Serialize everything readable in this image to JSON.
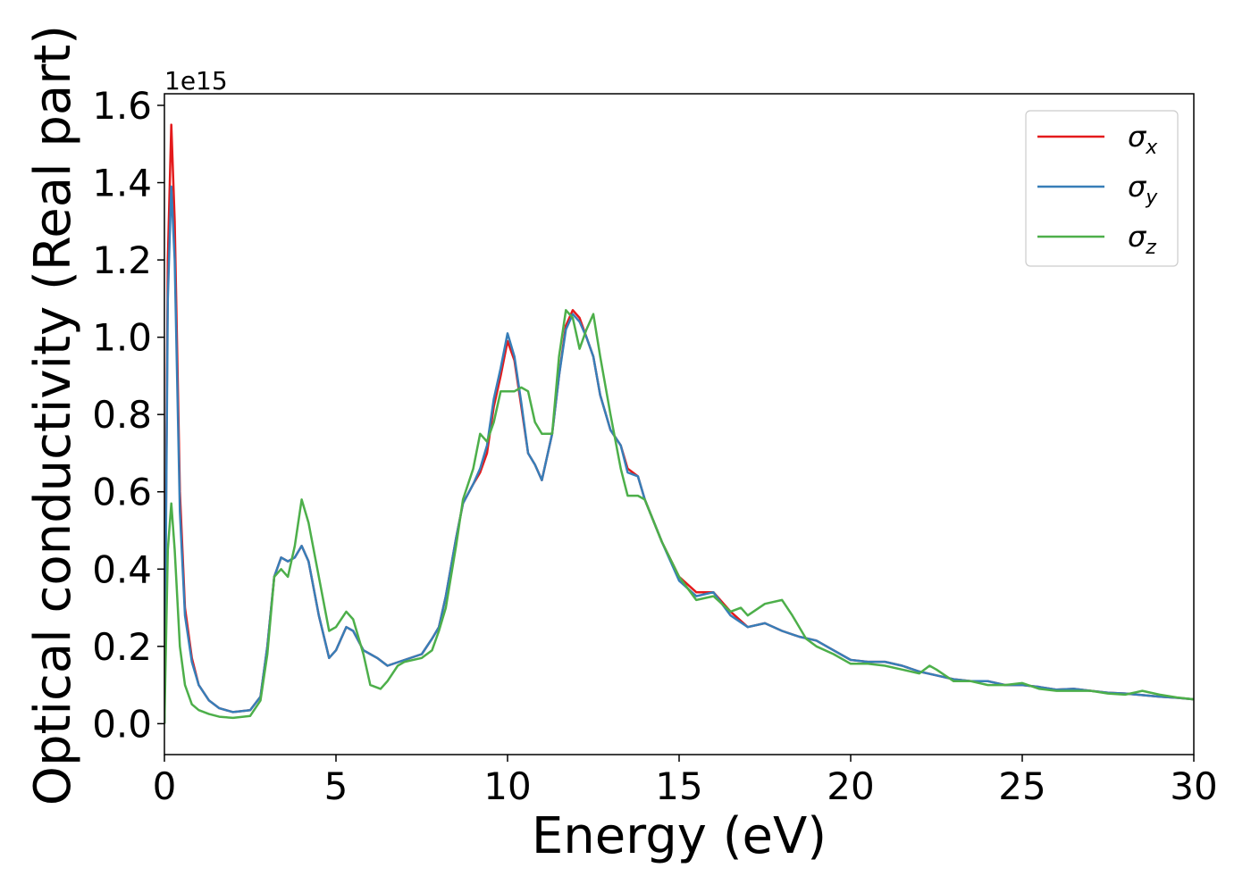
{
  "chart_data": {
    "type": "line",
    "xlabel": "Energy (eV)",
    "ylabel": "Optical conductivity (Real part)",
    "y_offset_label": "1e15",
    "xlim": [
      0,
      30
    ],
    "ylim": [
      -0.08,
      1.63
    ],
    "x_ticks": [
      0,
      5,
      10,
      15,
      20,
      25,
      30
    ],
    "y_ticks": [
      0.0,
      0.2,
      0.4,
      0.6,
      0.8,
      1.0,
      1.2,
      1.4,
      1.6
    ],
    "x_tick_labels": [
      "0",
      "5",
      "10",
      "15",
      "20",
      "25",
      "30"
    ],
    "y_tick_labels": [
      "0.0",
      "0.2",
      "0.4",
      "0.6",
      "0.8",
      "1.0",
      "1.2",
      "1.4",
      "1.6"
    ],
    "grid": false,
    "legend_position": "top-right",
    "series": [
      {
        "name": "σx",
        "symbol": "σ",
        "subscript": "x",
        "color": "#e41a1c",
        "points": [
          [
            0,
            0.0
          ],
          [
            0.1,
            1.2
          ],
          [
            0.2,
            1.55
          ],
          [
            0.3,
            1.3
          ],
          [
            0.45,
            0.6
          ],
          [
            0.6,
            0.3
          ],
          [
            0.8,
            0.17
          ],
          [
            1.0,
            0.1
          ],
          [
            1.3,
            0.06
          ],
          [
            1.6,
            0.04
          ],
          [
            2.0,
            0.03
          ],
          [
            2.5,
            0.035
          ],
          [
            2.8,
            0.07
          ],
          [
            3.0,
            0.2
          ],
          [
            3.2,
            0.38
          ],
          [
            3.4,
            0.43
          ],
          [
            3.6,
            0.42
          ],
          [
            3.8,
            0.43
          ],
          [
            4.0,
            0.46
          ],
          [
            4.2,
            0.42
          ],
          [
            4.5,
            0.28
          ],
          [
            4.8,
            0.17
          ],
          [
            5.0,
            0.19
          ],
          [
            5.3,
            0.25
          ],
          [
            5.5,
            0.24
          ],
          [
            5.8,
            0.19
          ],
          [
            6.0,
            0.18
          ],
          [
            6.2,
            0.17
          ],
          [
            6.5,
            0.15
          ],
          [
            7.0,
            0.165
          ],
          [
            7.5,
            0.18
          ],
          [
            7.8,
            0.22
          ],
          [
            8.0,
            0.25
          ],
          [
            8.2,
            0.33
          ],
          [
            8.5,
            0.48
          ],
          [
            8.7,
            0.57
          ],
          [
            9.0,
            0.62
          ],
          [
            9.2,
            0.65
          ],
          [
            9.4,
            0.7
          ],
          [
            9.6,
            0.82
          ],
          [
            9.8,
            0.9
          ],
          [
            10.0,
            0.99
          ],
          [
            10.2,
            0.94
          ],
          [
            10.4,
            0.82
          ],
          [
            10.6,
            0.7
          ],
          [
            10.8,
            0.67
          ],
          [
            11.0,
            0.63
          ],
          [
            11.3,
            0.75
          ],
          [
            11.5,
            0.9
          ],
          [
            11.7,
            1.03
          ],
          [
            11.9,
            1.07
          ],
          [
            12.1,
            1.05
          ],
          [
            12.3,
            1.0
          ],
          [
            12.5,
            0.95
          ],
          [
            12.7,
            0.85
          ],
          [
            13.0,
            0.76
          ],
          [
            13.3,
            0.72
          ],
          [
            13.5,
            0.66
          ],
          [
            13.8,
            0.64
          ],
          [
            14.0,
            0.58
          ],
          [
            14.5,
            0.47
          ],
          [
            15.0,
            0.38
          ],
          [
            15.5,
            0.34
          ],
          [
            16.0,
            0.34
          ],
          [
            16.5,
            0.29
          ],
          [
            17.0,
            0.25
          ],
          [
            17.5,
            0.26
          ],
          [
            18.0,
            0.24
          ],
          [
            18.5,
            0.225
          ],
          [
            19.0,
            0.215
          ],
          [
            19.5,
            0.19
          ],
          [
            20.0,
            0.165
          ],
          [
            20.5,
            0.16
          ],
          [
            21.0,
            0.16
          ],
          [
            21.5,
            0.15
          ],
          [
            22.0,
            0.135
          ],
          [
            22.5,
            0.125
          ],
          [
            23.0,
            0.115
          ],
          [
            23.5,
            0.11
          ],
          [
            24.0,
            0.11
          ],
          [
            24.5,
            0.1
          ],
          [
            25.0,
            0.1
          ],
          [
            25.5,
            0.095
          ],
          [
            26.0,
            0.088
          ],
          [
            26.5,
            0.09
          ],
          [
            27.0,
            0.085
          ],
          [
            27.5,
            0.08
          ],
          [
            28.0,
            0.078
          ],
          [
            28.5,
            0.074
          ],
          [
            29.0,
            0.07
          ],
          [
            29.5,
            0.067
          ],
          [
            30.0,
            0.063
          ]
        ]
      },
      {
        "name": "σy",
        "symbol": "σ",
        "subscript": "y",
        "color": "#377eb8",
        "points": [
          [
            0,
            0.0
          ],
          [
            0.1,
            1.1
          ],
          [
            0.2,
            1.39
          ],
          [
            0.3,
            1.2
          ],
          [
            0.45,
            0.55
          ],
          [
            0.6,
            0.28
          ],
          [
            0.8,
            0.16
          ],
          [
            1.0,
            0.1
          ],
          [
            1.3,
            0.06
          ],
          [
            1.6,
            0.04
          ],
          [
            2.0,
            0.03
          ],
          [
            2.5,
            0.035
          ],
          [
            2.8,
            0.07
          ],
          [
            3.0,
            0.2
          ],
          [
            3.2,
            0.38
          ],
          [
            3.4,
            0.43
          ],
          [
            3.6,
            0.42
          ],
          [
            3.8,
            0.43
          ],
          [
            4.0,
            0.46
          ],
          [
            4.2,
            0.42
          ],
          [
            4.5,
            0.28
          ],
          [
            4.8,
            0.17
          ],
          [
            5.0,
            0.19
          ],
          [
            5.3,
            0.25
          ],
          [
            5.5,
            0.24
          ],
          [
            5.8,
            0.19
          ],
          [
            6.0,
            0.18
          ],
          [
            6.2,
            0.17
          ],
          [
            6.5,
            0.15
          ],
          [
            7.0,
            0.165
          ],
          [
            7.5,
            0.18
          ],
          [
            7.8,
            0.22
          ],
          [
            8.0,
            0.25
          ],
          [
            8.2,
            0.33
          ],
          [
            8.5,
            0.48
          ],
          [
            8.7,
            0.57
          ],
          [
            9.0,
            0.62
          ],
          [
            9.2,
            0.66
          ],
          [
            9.4,
            0.72
          ],
          [
            9.6,
            0.84
          ],
          [
            9.8,
            0.92
          ],
          [
            10.0,
            1.01
          ],
          [
            10.2,
            0.95
          ],
          [
            10.4,
            0.83
          ],
          [
            10.6,
            0.7
          ],
          [
            10.8,
            0.67
          ],
          [
            11.0,
            0.63
          ],
          [
            11.3,
            0.75
          ],
          [
            11.5,
            0.9
          ],
          [
            11.7,
            1.02
          ],
          [
            11.9,
            1.06
          ],
          [
            12.1,
            1.04
          ],
          [
            12.3,
            1.0
          ],
          [
            12.5,
            0.95
          ],
          [
            12.7,
            0.85
          ],
          [
            13.0,
            0.76
          ],
          [
            13.3,
            0.72
          ],
          [
            13.5,
            0.65
          ],
          [
            13.8,
            0.64
          ],
          [
            14.0,
            0.58
          ],
          [
            14.5,
            0.47
          ],
          [
            15.0,
            0.37
          ],
          [
            15.5,
            0.33
          ],
          [
            16.0,
            0.34
          ],
          [
            16.5,
            0.28
          ],
          [
            17.0,
            0.25
          ],
          [
            17.5,
            0.26
          ],
          [
            18.0,
            0.24
          ],
          [
            18.5,
            0.225
          ],
          [
            19.0,
            0.215
          ],
          [
            19.5,
            0.19
          ],
          [
            20.0,
            0.165
          ],
          [
            20.5,
            0.16
          ],
          [
            21.0,
            0.16
          ],
          [
            21.5,
            0.15
          ],
          [
            22.0,
            0.135
          ],
          [
            22.5,
            0.125
          ],
          [
            23.0,
            0.115
          ],
          [
            23.5,
            0.11
          ],
          [
            24.0,
            0.11
          ],
          [
            24.5,
            0.1
          ],
          [
            25.0,
            0.1
          ],
          [
            25.5,
            0.095
          ],
          [
            26.0,
            0.088
          ],
          [
            26.5,
            0.09
          ],
          [
            27.0,
            0.085
          ],
          [
            27.5,
            0.08
          ],
          [
            28.0,
            0.078
          ],
          [
            28.5,
            0.074
          ],
          [
            29.0,
            0.07
          ],
          [
            29.5,
            0.067
          ],
          [
            30.0,
            0.063
          ]
        ]
      },
      {
        "name": "σz",
        "symbol": "σ",
        "subscript": "z",
        "color": "#4daf4a",
        "points": [
          [
            0,
            0.0
          ],
          [
            0.1,
            0.45
          ],
          [
            0.2,
            0.57
          ],
          [
            0.3,
            0.45
          ],
          [
            0.45,
            0.2
          ],
          [
            0.6,
            0.1
          ],
          [
            0.8,
            0.05
          ],
          [
            1.0,
            0.035
          ],
          [
            1.3,
            0.025
          ],
          [
            1.6,
            0.018
          ],
          [
            2.0,
            0.015
          ],
          [
            2.5,
            0.02
          ],
          [
            2.8,
            0.06
          ],
          [
            3.0,
            0.18
          ],
          [
            3.2,
            0.38
          ],
          [
            3.4,
            0.4
          ],
          [
            3.6,
            0.38
          ],
          [
            3.8,
            0.46
          ],
          [
            4.0,
            0.58
          ],
          [
            4.2,
            0.52
          ],
          [
            4.5,
            0.38
          ],
          [
            4.8,
            0.24
          ],
          [
            5.0,
            0.25
          ],
          [
            5.3,
            0.29
          ],
          [
            5.5,
            0.27
          ],
          [
            5.8,
            0.18
          ],
          [
            6.0,
            0.1
          ],
          [
            6.3,
            0.09
          ],
          [
            6.5,
            0.11
          ],
          [
            6.8,
            0.15
          ],
          [
            7.0,
            0.16
          ],
          [
            7.5,
            0.17
          ],
          [
            7.8,
            0.19
          ],
          [
            8.0,
            0.24
          ],
          [
            8.2,
            0.3
          ],
          [
            8.5,
            0.46
          ],
          [
            8.7,
            0.58
          ],
          [
            9.0,
            0.66
          ],
          [
            9.2,
            0.75
          ],
          [
            9.4,
            0.73
          ],
          [
            9.6,
            0.78
          ],
          [
            9.8,
            0.86
          ],
          [
            10.0,
            0.86
          ],
          [
            10.2,
            0.86
          ],
          [
            10.4,
            0.87
          ],
          [
            10.6,
            0.86
          ],
          [
            10.8,
            0.78
          ],
          [
            11.0,
            0.75
          ],
          [
            11.3,
            0.75
          ],
          [
            11.5,
            0.95
          ],
          [
            11.7,
            1.07
          ],
          [
            11.9,
            1.05
          ],
          [
            12.1,
            0.97
          ],
          [
            12.3,
            1.02
          ],
          [
            12.5,
            1.06
          ],
          [
            12.7,
            0.95
          ],
          [
            13.0,
            0.8
          ],
          [
            13.3,
            0.66
          ],
          [
            13.5,
            0.59
          ],
          [
            13.8,
            0.59
          ],
          [
            14.0,
            0.58
          ],
          [
            14.5,
            0.47
          ],
          [
            15.0,
            0.38
          ],
          [
            15.5,
            0.32
          ],
          [
            16.0,
            0.33
          ],
          [
            16.5,
            0.29
          ],
          [
            16.8,
            0.3
          ],
          [
            17.0,
            0.28
          ],
          [
            17.5,
            0.31
          ],
          [
            18.0,
            0.32
          ],
          [
            18.3,
            0.28
          ],
          [
            18.7,
            0.22
          ],
          [
            19.0,
            0.2
          ],
          [
            19.5,
            0.18
          ],
          [
            20.0,
            0.155
          ],
          [
            20.5,
            0.155
          ],
          [
            21.0,
            0.15
          ],
          [
            21.5,
            0.14
          ],
          [
            22.0,
            0.13
          ],
          [
            22.3,
            0.15
          ],
          [
            22.5,
            0.14
          ],
          [
            23.0,
            0.11
          ],
          [
            23.5,
            0.11
          ],
          [
            24.0,
            0.1
          ],
          [
            24.5,
            0.1
          ],
          [
            25.0,
            0.105
          ],
          [
            25.5,
            0.09
          ],
          [
            26.0,
            0.085
          ],
          [
            26.5,
            0.085
          ],
          [
            27.0,
            0.085
          ],
          [
            27.5,
            0.078
          ],
          [
            28.0,
            0.075
          ],
          [
            28.5,
            0.085
          ],
          [
            29.0,
            0.075
          ],
          [
            29.5,
            0.068
          ],
          [
            30.0,
            0.063
          ]
        ]
      }
    ]
  }
}
